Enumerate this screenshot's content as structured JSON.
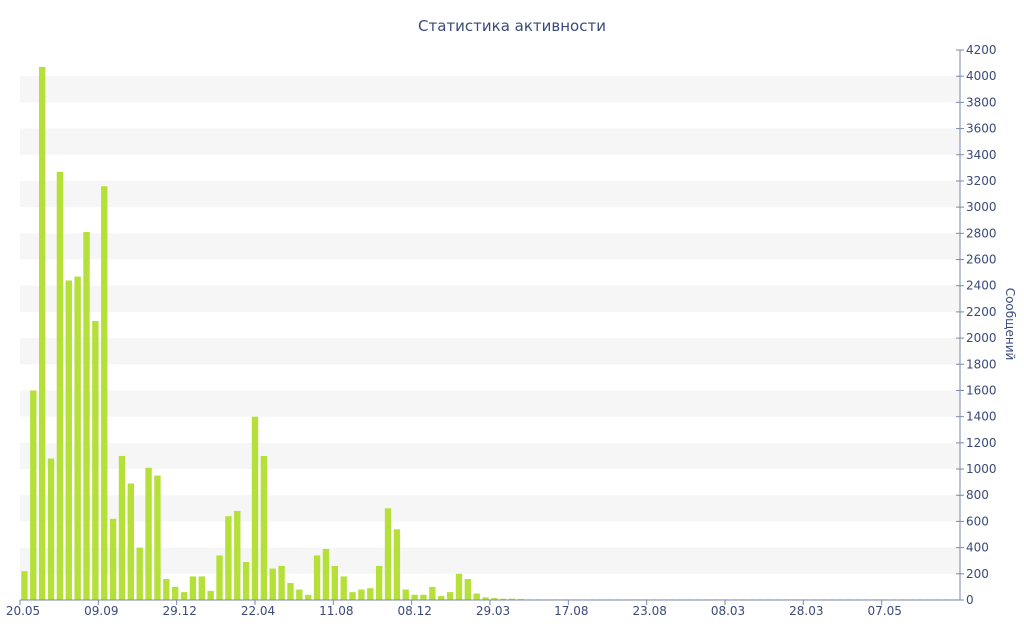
{
  "chart_data": {
    "type": "bar",
    "title": "Статистика активности",
    "xlabel": "",
    "ylabel": "Сообщений",
    "ylim": [
      0,
      4200
    ],
    "y_axis_position": "right",
    "grid": "horizontal bands",
    "legend": "none",
    "bar_color": "#b5e03a",
    "band_color": "#f6f6f6",
    "text_color": "#3a4a7a",
    "y_ticks": [
      0,
      200,
      400,
      600,
      800,
      1000,
      1200,
      1400,
      1600,
      1800,
      2000,
      2200,
      2400,
      2600,
      2800,
      3000,
      3200,
      3400,
      3600,
      3800,
      4000,
      4200
    ],
    "x_tick_labels": [
      "20.05",
      "09.09",
      "29.12",
      "22.04",
      "11.08",
      "08.12",
      "29.03",
      "17.08",
      "23.08",
      "08.03",
      "28.03",
      "07.05"
    ],
    "values": [
      220,
      1600,
      4070,
      1080,
      3270,
      2440,
      2470,
      2810,
      2130,
      3160,
      620,
      1100,
      890,
      400,
      1010,
      950,
      160,
      100,
      60,
      180,
      180,
      70,
      340,
      640,
      680,
      290,
      1400,
      1100,
      240,
      260,
      130,
      80,
      40,
      340,
      390,
      260,
      180,
      60,
      80,
      90,
      260,
      700,
      540,
      80,
      40,
      40,
      100,
      30,
      60,
      200,
      160,
      50,
      20,
      15,
      10,
      10,
      8,
      5,
      5,
      5,
      5,
      5,
      5,
      5,
      5,
      5,
      5,
      5,
      5,
      5,
      5,
      5,
      5,
      5,
      5,
      5,
      5,
      5,
      5,
      5,
      5,
      5,
      5,
      5,
      5,
      5,
      5,
      5,
      5,
      5,
      5,
      5,
      5,
      5,
      5,
      5,
      5,
      5,
      5,
      5,
      5,
      5,
      5,
      5,
      5,
      5
    ]
  }
}
